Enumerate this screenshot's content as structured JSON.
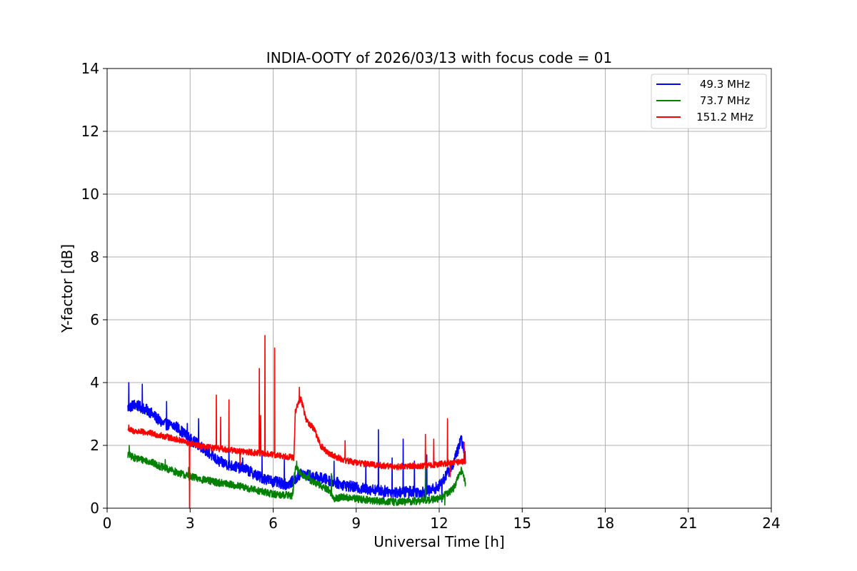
{
  "chart_data": {
    "type": "line",
    "title": "INDIA-OOTY of 2026/03/13 with focus code = 01",
    "xlabel": "Universal Time [h]",
    "ylabel": "Y-factor [dB]",
    "xlim": [
      0,
      24
    ],
    "ylim": [
      0,
      14
    ],
    "xticks": [
      0,
      3,
      6,
      9,
      12,
      15,
      18,
      21,
      24
    ],
    "yticks": [
      0,
      2,
      4,
      6,
      8,
      10,
      12,
      14
    ],
    "grid": true,
    "legend_position": "top-right",
    "series": [
      {
        "name": "49.3 MHz",
        "color": "#0000ff",
        "noise": 0.18,
        "base": [
          [
            0.75,
            3.2
          ],
          [
            1.0,
            3.3
          ],
          [
            1.5,
            3.1
          ],
          [
            2.0,
            2.7
          ],
          [
            2.5,
            2.6
          ],
          [
            3.0,
            2.2
          ],
          [
            3.5,
            1.9
          ],
          [
            4.0,
            1.5
          ],
          [
            4.5,
            1.35
          ],
          [
            5.0,
            1.25
          ],
          [
            5.5,
            1.0
          ],
          [
            6.0,
            0.85
          ],
          [
            6.5,
            0.75
          ],
          [
            6.8,
            0.9
          ],
          [
            7.0,
            1.1
          ],
          [
            7.5,
            1.0
          ],
          [
            8.0,
            0.9
          ],
          [
            8.5,
            0.75
          ],
          [
            9.0,
            0.65
          ],
          [
            9.5,
            0.6
          ],
          [
            10.0,
            0.55
          ],
          [
            10.5,
            0.5
          ],
          [
            11.0,
            0.55
          ],
          [
            11.5,
            0.5
          ],
          [
            12.0,
            0.7
          ],
          [
            12.5,
            1.4
          ],
          [
            12.8,
            2.2
          ],
          [
            12.95,
            1.6
          ]
        ],
        "spikes": [
          [
            0.78,
            4.0
          ],
          [
            1.27,
            3.95
          ],
          [
            2.15,
            3.4
          ],
          [
            2.9,
            2.7
          ],
          [
            3.3,
            2.85
          ],
          [
            4.4,
            2.15
          ],
          [
            4.9,
            1.6
          ],
          [
            5.6,
            1.75
          ],
          [
            6.4,
            1.55
          ],
          [
            8.2,
            1.5
          ],
          [
            9.35,
            1.45
          ],
          [
            9.8,
            2.5
          ],
          [
            10.0,
            0.2
          ],
          [
            10.3,
            1.6
          ],
          [
            10.7,
            2.2
          ],
          [
            10.9,
            0.2
          ],
          [
            11.1,
            1.5
          ],
          [
            11.55,
            1.7
          ],
          [
            12.1,
            0.2
          ]
        ]
      },
      {
        "name": "73.7 MHz",
        "color": "#008000",
        "noise": 0.12,
        "base": [
          [
            0.75,
            1.7
          ],
          [
            1.0,
            1.6
          ],
          [
            1.5,
            1.5
          ],
          [
            2.0,
            1.3
          ],
          [
            2.5,
            1.15
          ],
          [
            3.0,
            1.0
          ],
          [
            3.5,
            0.9
          ],
          [
            4.0,
            0.82
          ],
          [
            4.5,
            0.75
          ],
          [
            5.0,
            0.65
          ],
          [
            5.5,
            0.55
          ],
          [
            6.0,
            0.45
          ],
          [
            6.7,
            0.4
          ],
          [
            6.8,
            1.3
          ],
          [
            7.0,
            1.1
          ],
          [
            7.5,
            0.8
          ],
          [
            8.0,
            0.6
          ],
          [
            8.2,
            0.3
          ],
          [
            8.5,
            0.35
          ],
          [
            9.0,
            0.3
          ],
          [
            9.5,
            0.25
          ],
          [
            10.0,
            0.22
          ],
          [
            10.5,
            0.2
          ],
          [
            11.0,
            0.22
          ],
          [
            11.5,
            0.25
          ],
          [
            12.0,
            0.3
          ],
          [
            12.5,
            0.6
          ],
          [
            12.8,
            1.2
          ],
          [
            12.95,
            0.8
          ]
        ],
        "spikes": [
          [
            0.8,
            2.0
          ],
          [
            2.1,
            1.55
          ],
          [
            2.95,
            1.3
          ],
          [
            6.85,
            1.5
          ],
          [
            7.3,
            1.2
          ],
          [
            8.1,
            1.1
          ],
          [
            11.5,
            1.3
          ],
          [
            12.2,
            0.1
          ]
        ]
      },
      {
        "name": "151.2 MHz",
        "color": "#ff0000",
        "noise": 0.1,
        "base": [
          [
            0.75,
            2.5
          ],
          [
            1.0,
            2.45
          ],
          [
            1.5,
            2.4
          ],
          [
            2.0,
            2.3
          ],
          [
            2.5,
            2.2
          ],
          [
            3.0,
            2.05
          ],
          [
            3.5,
            1.95
          ],
          [
            4.0,
            1.9
          ],
          [
            4.5,
            1.85
          ],
          [
            5.0,
            1.8
          ],
          [
            5.5,
            1.75
          ],
          [
            6.0,
            1.7
          ],
          [
            6.5,
            1.65
          ],
          [
            6.75,
            1.6
          ],
          [
            6.8,
            3.1
          ],
          [
            7.0,
            3.5
          ],
          [
            7.2,
            2.8
          ],
          [
            7.5,
            2.5
          ],
          [
            7.7,
            2.0
          ],
          [
            8.0,
            1.75
          ],
          [
            8.5,
            1.55
          ],
          [
            9.0,
            1.45
          ],
          [
            9.5,
            1.4
          ],
          [
            10.0,
            1.35
          ],
          [
            10.5,
            1.32
          ],
          [
            11.0,
            1.35
          ],
          [
            11.5,
            1.35
          ],
          [
            12.0,
            1.4
          ],
          [
            12.5,
            1.45
          ],
          [
            12.95,
            1.5
          ]
        ],
        "spikes": [
          [
            0.78,
            2.65
          ],
          [
            2.98,
            0.0
          ],
          [
            3.95,
            3.6
          ],
          [
            4.1,
            2.9
          ],
          [
            4.4,
            3.45
          ],
          [
            4.8,
            1.4
          ],
          [
            5.5,
            4.45
          ],
          [
            5.55,
            2.95
          ],
          [
            5.7,
            5.5
          ],
          [
            6.05,
            5.1
          ],
          [
            6.95,
            3.85
          ],
          [
            8.6,
            2.15
          ],
          [
            11.5,
            2.35
          ],
          [
            11.8,
            2.2
          ],
          [
            12.3,
            2.85
          ],
          [
            12.4,
            1.0
          ],
          [
            12.9,
            2.1
          ]
        ]
      }
    ]
  }
}
